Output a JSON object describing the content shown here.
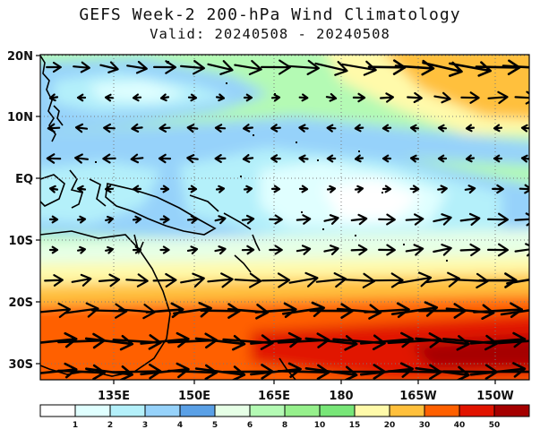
{
  "title": "GEFS Week-2 200-hPa Wind Climatology",
  "subtitle": "Valid: 20240508 - 20240508",
  "lat_labels": [
    "20N",
    "10N",
    "EQ",
    "10S",
    "20S",
    "30S"
  ],
  "lon_labels": [
    "135E",
    "150E",
    "165E",
    "180",
    "165W",
    "150W"
  ],
  "colorbar": {
    "labels": [
      "1",
      "2",
      "3",
      "4",
      "5",
      "6",
      "8",
      "10",
      "15",
      "20",
      "30",
      "40",
      "50"
    ],
    "colors": [
      "#ffffff",
      "#e0ffff",
      "#b4f0fa",
      "#96d2fa",
      "#5aa0e6",
      "#e6ffe6",
      "#b4fab4",
      "#96f08c",
      "#78e678",
      "#fffaaa",
      "#ffc03c",
      "#ff6000",
      "#e11400",
      "#a50000"
    ]
  }
}
